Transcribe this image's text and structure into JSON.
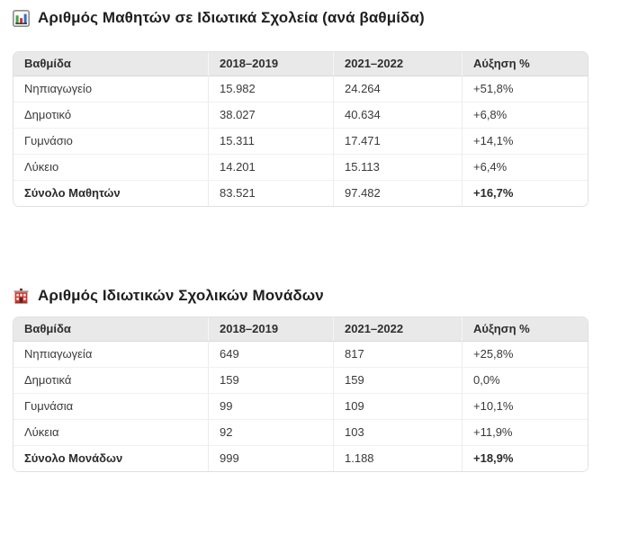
{
  "colors": {
    "header_bg": "#e9e9e9",
    "table_border": "#e0e0e0",
    "row_divider": "#f0f0f0",
    "column_divider": "#ececec",
    "body_text": "#3a3a3a",
    "title_text": "#1f1f1f",
    "icon_green": "#3fa44e",
    "icon_red": "#d0342c",
    "icon_blue": "#2f6fd0"
  },
  "sections": [
    {
      "icon": "bar-chart-icon",
      "title": "Αριθμός Μαθητών σε Ιδιωτικά Σχολεία (ανά βαθμίδα)",
      "table": {
        "columns": [
          "Βαθμίδα",
          "2018–2019",
          "2021–2022",
          "Αύξηση %"
        ],
        "rows": [
          {
            "total": false,
            "cells": [
              "Νηπιαγωγείο",
              "15.982",
              "24.264",
              "+51,8%"
            ]
          },
          {
            "total": false,
            "cells": [
              "Δημοτικό",
              "38.027",
              "40.634",
              "+6,8%"
            ]
          },
          {
            "total": false,
            "cells": [
              "Γυμνάσιο",
              "15.311",
              "17.471",
              "+14,1%"
            ]
          },
          {
            "total": false,
            "cells": [
              "Λύκειο",
              "14.201",
              "15.113",
              "+6,4%"
            ]
          },
          {
            "total": true,
            "cells": [
              "Σύνολο Μαθητών",
              "83.521",
              "97.482",
              "+16,7%"
            ]
          }
        ]
      }
    },
    {
      "icon": "school-icon",
      "title": "Αριθμός Ιδιωτικών Σχολικών Μονάδων",
      "table": {
        "columns": [
          "Βαθμίδα",
          "2018–2019",
          "2021–2022",
          "Αύξηση %"
        ],
        "rows": [
          {
            "total": false,
            "cells": [
              "Νηπιαγωγεία",
              "649",
              "817",
              "+25,8%"
            ]
          },
          {
            "total": false,
            "cells": [
              "Δημοτικά",
              "159",
              "159",
              "0,0%"
            ]
          },
          {
            "total": false,
            "cells": [
              "Γυμνάσια",
              "99",
              "109",
              "+10,1%"
            ]
          },
          {
            "total": false,
            "cells": [
              "Λύκεια",
              "92",
              "103",
              "+11,9%"
            ]
          },
          {
            "total": true,
            "cells": [
              "Σύνολο Μονάδων",
              "999",
              "1.188",
              "+18,9%"
            ]
          }
        ]
      }
    }
  ],
  "chart_data": [
    {
      "type": "table",
      "title": "Αριθμός Μαθητών σε Ιδιωτικά Σχολεία (ανά βαθμίδα)",
      "columns": [
        "Βαθμίδα",
        "2018–2019",
        "2021–2022",
        "Αύξηση %"
      ],
      "categories": [
        "Νηπιαγωγείο",
        "Δημοτικό",
        "Γυμνάσιο",
        "Λύκειο",
        "Σύνολο Μαθητών"
      ],
      "series": [
        {
          "name": "2018–2019",
          "values": [
            15982,
            38027,
            15311,
            14201,
            83521
          ]
        },
        {
          "name": "2021–2022",
          "values": [
            24264,
            40634,
            17471,
            15113,
            97482
          ]
        },
        {
          "name": "Αύξηση %",
          "values": [
            51.8,
            6.8,
            14.1,
            6.4,
            16.7
          ]
        }
      ]
    },
    {
      "type": "table",
      "title": "Αριθμός Ιδιωτικών Σχολικών Μονάδων",
      "columns": [
        "Βαθμίδα",
        "2018–2019",
        "2021–2022",
        "Αύξηση %"
      ],
      "categories": [
        "Νηπιαγωγεία",
        "Δημοτικά",
        "Γυμνάσια",
        "Λύκεια",
        "Σύνολο Μονάδων"
      ],
      "series": [
        {
          "name": "2018–2019",
          "values": [
            649,
            159,
            99,
            92,
            999
          ]
        },
        {
          "name": "2021–2022",
          "values": [
            817,
            159,
            109,
            103,
            1188
          ]
        },
        {
          "name": "Αύξηση %",
          "values": [
            25.8,
            0.0,
            10.1,
            11.9,
            18.9
          ]
        }
      ]
    }
  ]
}
